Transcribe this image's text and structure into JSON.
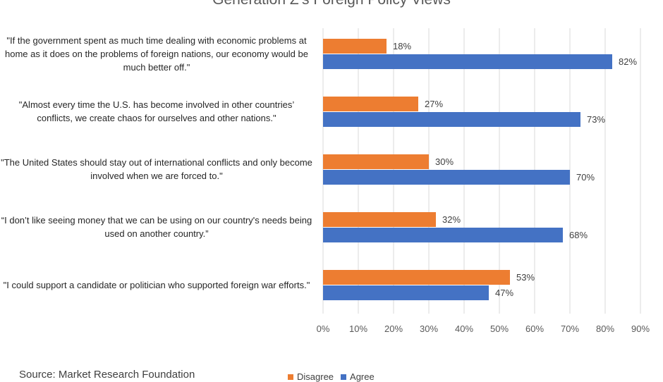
{
  "chart_data": {
    "type": "bar",
    "orientation": "horizontal",
    "title": "Generation Z’s Foreign Policy Views",
    "categories": [
      "\"If the government spent as much time dealing with economic problems at home as it does on the problems of foreign nations, our economy would be much better off.\"",
      "\"Almost every time the U.S. has become involved in other countries’ conflicts, we create chaos for ourselves and other nations.\"",
      "\"The United States should stay out of international conflicts and only become involved when we are forced to.\"",
      "“I don’t like seeing money that we can be using on our country's needs being used on another country.”",
      "\"I could support a candidate or politician who supported foreign war efforts.\""
    ],
    "series": [
      {
        "name": "Disagree",
        "color": "#ED7D31",
        "values": [
          18,
          27,
          30,
          32,
          53
        ]
      },
      {
        "name": "Agree",
        "color": "#4472C4",
        "values": [
          82,
          73,
          70,
          68,
          47
        ]
      }
    ],
    "xlim": [
      0,
      90
    ],
    "xticks": [
      "0%",
      "10%",
      "20%",
      "30%",
      "40%",
      "50%",
      "60%",
      "70%",
      "80%",
      "90%"
    ],
    "value_suffix": "%",
    "grid": true,
    "legend_position": "bottom"
  },
  "source": "Source: Market Research Foundation"
}
